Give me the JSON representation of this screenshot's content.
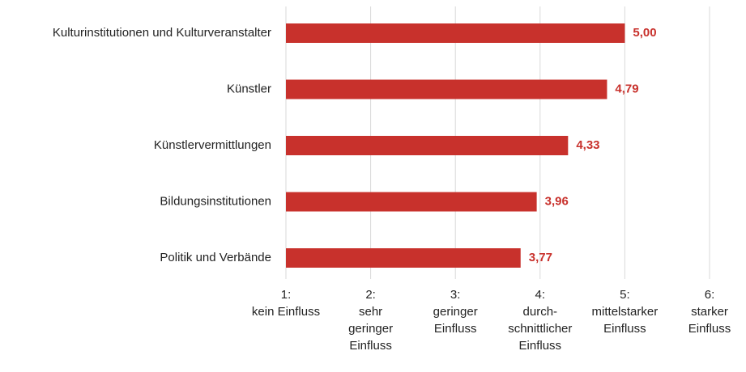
{
  "chart_data": {
    "type": "bar",
    "orientation": "horizontal",
    "categories": [
      "Kulturinstitutionen und Kulturveranstalter",
      "Künstler",
      "Künstlervermittlungen",
      "Bildungsinstitutionen",
      "Politik und Verbände"
    ],
    "values": [
      5.0,
      4.79,
      4.33,
      3.96,
      3.77
    ],
    "value_labels": [
      "5,00",
      "4,79",
      "4,33",
      "3,96",
      "3,77"
    ],
    "color": "#c8312c",
    "xlim": [
      1,
      6
    ],
    "xticks": [
      {
        "value": 1,
        "label": "1:\nkein Einfluss"
      },
      {
        "value": 2,
        "label": "2:\nsehr\ngeringer\nEinfluss"
      },
      {
        "value": 3,
        "label": "3:\ngeringer\nEinfluss"
      },
      {
        "value": 4,
        "label": "4:\ndurch-\nschnittlicher\nEinfluss"
      },
      {
        "value": 5,
        "label": "5:\nmittelstarker\nEinfluss"
      },
      {
        "value": 6,
        "label": "6:\nstarker\nEinfluss"
      }
    ],
    "grid": true
  }
}
